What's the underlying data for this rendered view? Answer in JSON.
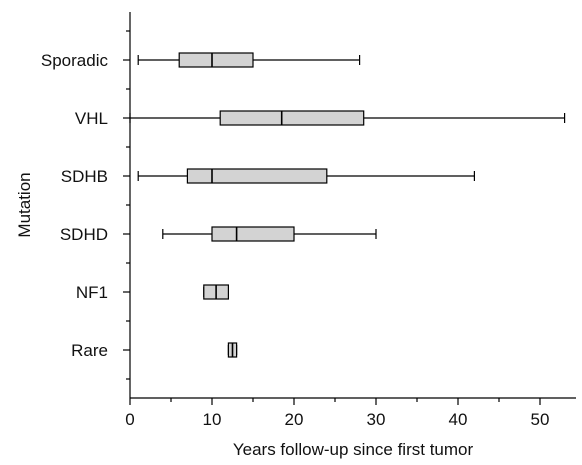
{
  "chart_data": {
    "type": "boxplot",
    "orientation": "horizontal",
    "xlabel": "Years follow-up since first tumor",
    "ylabel": "Mutation",
    "xlim": [
      0,
      54
    ],
    "xticks": [
      0,
      10,
      20,
      30,
      40,
      50
    ],
    "grid": false,
    "categories": [
      "Sporadic",
      "VHL",
      "SDHB",
      "SDHD",
      "NF1",
      "Rare"
    ],
    "series": [
      {
        "category": "Sporadic",
        "min": 1,
        "q1": 6,
        "median": 10,
        "q3": 15,
        "max": 28
      },
      {
        "category": "VHL",
        "min": 0,
        "q1": 11,
        "median": 18.5,
        "q3": 28.5,
        "max": 53
      },
      {
        "category": "SDHB",
        "min": 1,
        "q1": 7,
        "median": 10,
        "q3": 24,
        "max": 42
      },
      {
        "category": "SDHD",
        "min": 4,
        "q1": 10,
        "median": 13,
        "q3": 20,
        "max": 30
      },
      {
        "category": "NF1",
        "min": 9,
        "q1": 9,
        "median": 10.5,
        "q3": 12,
        "max": 12
      },
      {
        "category": "Rare",
        "min": 12,
        "q1": 12,
        "median": 12.5,
        "q3": 13,
        "max": 13
      }
    ]
  }
}
